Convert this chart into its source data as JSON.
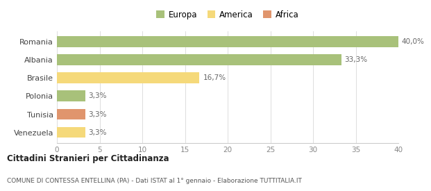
{
  "categories": [
    "Venezuela",
    "Tunisia",
    "Polonia",
    "Brasile",
    "Albania",
    "Romania"
  ],
  "values": [
    3.3,
    3.3,
    3.3,
    16.7,
    33.3,
    40.0
  ],
  "labels": [
    "3,3%",
    "3,3%",
    "3,3%",
    "16,7%",
    "33,3%",
    "40,0%"
  ],
  "colors": [
    "#f5d97a",
    "#e0956d",
    "#a8c17a",
    "#f5d97a",
    "#a8c17a",
    "#a8c17a"
  ],
  "legend": [
    {
      "label": "Europa",
      "color": "#a8c17a"
    },
    {
      "label": "America",
      "color": "#f5d97a"
    },
    {
      "label": "Africa",
      "color": "#e0956d"
    }
  ],
  "xlim": [
    0,
    40
  ],
  "xticks": [
    0,
    5,
    10,
    15,
    20,
    25,
    30,
    35,
    40
  ],
  "title_bold": "Cittadini Stranieri per Cittadinanza",
  "subtitle": "COMUNE DI CONTESSA ENTELLINA (PA) - Dati ISTAT al 1° gennaio - Elaborazione TUTTITALIA.IT",
  "background_color": "#ffffff"
}
